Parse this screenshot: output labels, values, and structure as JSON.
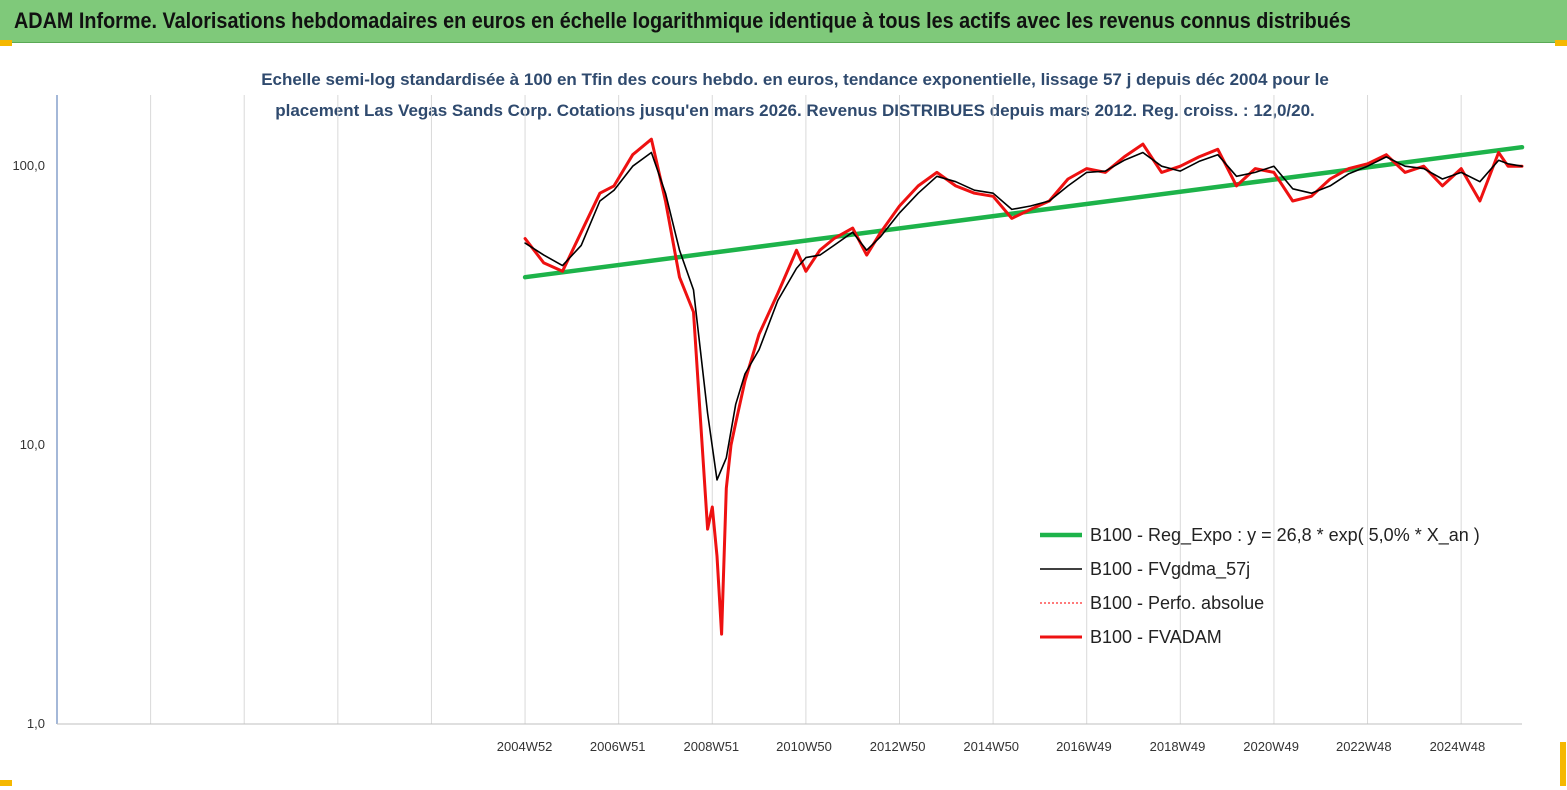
{
  "header": {
    "title": "ADAM Informe. Valorisations hebdomadaires en euros en échelle logarithmique identique à tous les actifs avec les revenus connus distribués"
  },
  "colors": {
    "banner": "#7fc97a",
    "corner": "#f5b800",
    "regression": "#1db34a",
    "fvgdma": "#000000",
    "perfo": "#ff2a2a",
    "fvadam": "#ee1111",
    "subtitle": "#2f4a6e"
  },
  "chart_data": {
    "type": "line",
    "subtitle_line1": "Echelle semi-log standardisée à 100 en Tfin des cours hebdo. en euros, tendance exponentielle, lissage 57 j depuis déc 2004 pour le",
    "subtitle_line2": "placement Las Vegas Sands Corp. Cotations jusqu'en mars 2026. Revenus DISTRIBUES depuis mars 2012. Reg. croiss. : 12,0/20.",
    "y_scale": "log",
    "ylim": [
      1,
      180
    ],
    "y_ticks": [
      {
        "value": 1,
        "label": "1,0"
      },
      {
        "value": 10,
        "label": "10,0"
      },
      {
        "value": 100,
        "label": "100,0"
      }
    ],
    "xlim": [
      1995.0,
      2026.3
    ],
    "x_ticks": [
      {
        "value": 2004.99,
        "label": "2004W52"
      },
      {
        "value": 2006.98,
        "label": "2006W51"
      },
      {
        "value": 2008.98,
        "label": "2008W51"
      },
      {
        "value": 2010.96,
        "label": "2010W50"
      },
      {
        "value": 2012.96,
        "label": "2012W50"
      },
      {
        "value": 2014.96,
        "label": "2014W50"
      },
      {
        "value": 2016.94,
        "label": "2016W49"
      },
      {
        "value": 2018.94,
        "label": "2018W49"
      },
      {
        "value": 2020.94,
        "label": "2020W49"
      },
      {
        "value": 2022.92,
        "label": "2022W48"
      },
      {
        "value": 2024.92,
        "label": "2024W48"
      }
    ],
    "gridlines": "vertical",
    "legend_position": "bottom-right",
    "series": [
      {
        "name": "B100 - Reg_Expo : y = 26,8 * exp( 5,0% *  X_an )",
        "style": "thick-green",
        "x": [
          2005.0,
          2026.3
        ],
        "y": [
          40,
          117
        ]
      },
      {
        "name": "B100 - FVgdma_57j",
        "style": "thin-black",
        "x": [
          2005.0,
          2005.4,
          2005.8,
          2006.2,
          2006.6,
          2006.9,
          2007.3,
          2007.7,
          2008.0,
          2008.3,
          2008.6,
          2008.9,
          2009.1,
          2009.3,
          2009.5,
          2009.7,
          2010.0,
          2010.4,
          2010.8,
          2011.0,
          2011.3,
          2011.6,
          2012.0,
          2012.3,
          2012.6,
          2013.0,
          2013.4,
          2013.8,
          2014.2,
          2014.6,
          2015.0,
          2015.4,
          2015.8,
          2016.2,
          2016.6,
          2017.0,
          2017.4,
          2017.8,
          2018.2,
          2018.6,
          2019.0,
          2019.4,
          2019.8,
          2020.2,
          2020.6,
          2021.0,
          2021.4,
          2021.8,
          2022.2,
          2022.6,
          2023.0,
          2023.4,
          2023.8,
          2024.2,
          2024.6,
          2025.0,
          2025.4,
          2025.8,
          2026.0,
          2026.3
        ],
        "y": [
          53,
          48,
          44,
          52,
          75,
          82,
          100,
          112,
          80,
          50,
          36,
          13,
          7.5,
          9,
          14,
          18,
          22,
          33,
          43,
          47,
          48,
          52,
          58,
          50,
          56,
          68,
          80,
          92,
          88,
          82,
          80,
          70,
          72,
          75,
          85,
          95,
          96,
          105,
          112,
          100,
          96,
          104,
          110,
          92,
          95,
          100,
          83,
          80,
          85,
          94,
          100,
          108,
          100,
          98,
          90,
          95,
          88,
          105,
          102,
          100
        ]
      },
      {
        "name": "B100 - Perfo. absolue",
        "style": "dotted-red",
        "x": [
          2005.0,
          2005.4,
          2005.8,
          2006.2,
          2006.6,
          2006.9,
          2007.3,
          2007.7,
          2008.0,
          2008.3,
          2008.6,
          2008.9,
          2009.0,
          2009.1,
          2009.2,
          2009.3,
          2009.4,
          2009.5,
          2009.7,
          2010.0,
          2010.4,
          2010.8,
          2011.0,
          2011.3,
          2011.6,
          2012.0,
          2012.3,
          2012.6,
          2013.0,
          2013.4,
          2013.8,
          2014.2,
          2014.6,
          2015.0,
          2015.4,
          2015.8,
          2016.2,
          2016.6,
          2017.0,
          2017.4,
          2017.8,
          2018.2,
          2018.6,
          2019.0,
          2019.4,
          2019.8,
          2020.2,
          2020.6,
          2021.0,
          2021.4,
          2021.8,
          2022.2,
          2022.6,
          2023.0,
          2023.4,
          2023.8,
          2024.2,
          2024.6,
          2025.0,
          2025.4,
          2025.8,
          2026.0,
          2026.3
        ],
        "y": [
          55,
          45,
          42,
          58,
          80,
          85,
          110,
          125,
          75,
          40,
          30,
          5,
          6,
          4,
          2.1,
          7,
          10,
          12,
          17,
          25,
          35,
          50,
          42,
          50,
          55,
          60,
          48,
          58,
          72,
          85,
          95,
          85,
          80,
          78,
          65,
          70,
          75,
          90,
          98,
          95,
          108,
          120,
          95,
          100,
          108,
          115,
          85,
          98,
          95,
          75,
          78,
          90,
          98,
          102,
          110,
          95,
          100,
          85,
          98,
          75,
          112,
          100,
          100
        ]
      },
      {
        "name": "B100 - FVADAM",
        "style": "thick-red",
        "x": [
          2005.0,
          2005.4,
          2005.8,
          2006.2,
          2006.6,
          2006.9,
          2007.3,
          2007.7,
          2008.0,
          2008.3,
          2008.6,
          2008.9,
          2009.0,
          2009.1,
          2009.2,
          2009.3,
          2009.4,
          2009.5,
          2009.7,
          2010.0,
          2010.4,
          2010.8,
          2011.0,
          2011.3,
          2011.6,
          2012.0,
          2012.3,
          2012.6,
          2013.0,
          2013.4,
          2013.8,
          2014.2,
          2014.6,
          2015.0,
          2015.4,
          2015.8,
          2016.2,
          2016.6,
          2017.0,
          2017.4,
          2017.8,
          2018.2,
          2018.6,
          2019.0,
          2019.4,
          2019.8,
          2020.2,
          2020.6,
          2021.0,
          2021.4,
          2021.8,
          2022.2,
          2022.6,
          2023.0,
          2023.4,
          2023.8,
          2024.2,
          2024.6,
          2025.0,
          2025.4,
          2025.8,
          2026.0,
          2026.3
        ],
        "y": [
          55,
          45,
          42,
          58,
          80,
          85,
          110,
          125,
          75,
          40,
          30,
          5,
          6,
          4,
          2.1,
          7,
          10,
          12,
          17,
          25,
          35,
          50,
          42,
          50,
          55,
          60,
          48,
          58,
          72,
          85,
          95,
          85,
          80,
          78,
          65,
          70,
          75,
          90,
          98,
          95,
          108,
          120,
          95,
          100,
          108,
          115,
          85,
          98,
          95,
          75,
          78,
          90,
          98,
          102,
          110,
          95,
          100,
          85,
          98,
          75,
          112,
          100,
          100
        ]
      }
    ]
  }
}
